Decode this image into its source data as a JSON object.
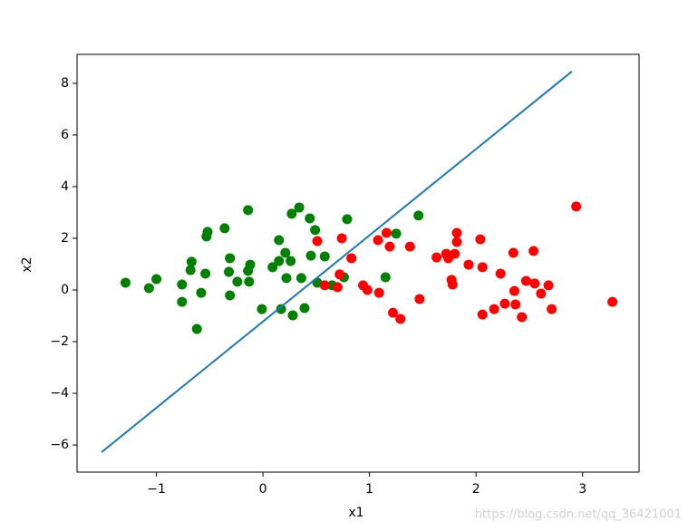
{
  "chart_data": {
    "type": "scatter",
    "xlabel": "x1",
    "ylabel": "x2",
    "xlim": [
      -1.745,
      3.53
    ],
    "ylim": [
      -7.05,
      9.12
    ],
    "xticks": [
      {
        "value": -1,
        "label": "−1"
      },
      0,
      1,
      2,
      3
    ],
    "yticks": [
      {
        "value": -6,
        "label": "−6"
      },
      {
        "value": -4,
        "label": "−4"
      },
      {
        "value": -2,
        "label": "−2"
      },
      0,
      2,
      4,
      6,
      8
    ],
    "series": [
      {
        "type": "scatter",
        "color": "#008000",
        "x": [
          -1.29,
          -1.07,
          -1.0,
          -0.76,
          -0.76,
          -0.67,
          -0.68,
          -0.62,
          -0.58,
          -0.54,
          -0.52,
          -0.53,
          -0.36,
          -0.31,
          -0.32,
          -0.31,
          -0.24,
          -0.14,
          -0.14,
          -0.12,
          -0.13,
          -0.01,
          0.09,
          0.15,
          0.15,
          0.17,
          0.21,
          0.22,
          0.26,
          0.27,
          0.28,
          0.34,
          0.36,
          0.39,
          0.44,
          0.45,
          0.49,
          0.51,
          0.58,
          0.65,
          0.76,
          0.79,
          1.15,
          1.25,
          1.46
        ],
        "values": [
          0.28,
          0.07,
          0.42,
          0.21,
          -0.46,
          1.09,
          0.77,
          -1.51,
          -0.11,
          0.63,
          2.25,
          2.07,
          2.39,
          1.23,
          0.7,
          -0.21,
          0.32,
          3.09,
          0.74,
          0.98,
          0.32,
          -0.74,
          0.88,
          1.93,
          1.12,
          -0.74,
          1.44,
          0.46,
          1.12,
          2.95,
          -0.98,
          3.19,
          0.46,
          -0.7,
          2.77,
          1.33,
          2.32,
          0.28,
          1.3,
          0.18,
          0.49,
          2.74,
          0.49,
          2.18,
          2.88
        ]
      },
      {
        "type": "scatter",
        "color": "#ff0000",
        "x": [
          0.51,
          0.58,
          0.7,
          0.74,
          0.72,
          0.83,
          0.94,
          0.98,
          1.08,
          1.09,
          1.16,
          1.19,
          1.22,
          1.29,
          1.38,
          1.47,
          1.63,
          1.72,
          1.74,
          1.77,
          1.78,
          1.8,
          1.82,
          1.82,
          1.93,
          2.04,
          2.06,
          2.06,
          2.17,
          2.23,
          2.27,
          2.35,
          2.36,
          2.37,
          2.43,
          2.47,
          2.55,
          2.54,
          2.61,
          2.68,
          2.71,
          2.94,
          3.28
        ],
        "values": [
          1.89,
          0.18,
          0.11,
          2.0,
          0.6,
          1.23,
          0.18,
          0.0,
          1.93,
          -0.11,
          2.21,
          1.68,
          -0.88,
          -1.12,
          1.68,
          -0.35,
          1.26,
          1.4,
          1.23,
          0.39,
          0.21,
          1.4,
          1.86,
          2.21,
          0.98,
          1.96,
          0.88,
          -0.95,
          -0.74,
          0.63,
          -0.53,
          1.44,
          -0.04,
          -0.56,
          -1.05,
          0.35,
          0.25,
          1.51,
          -0.14,
          0.18,
          -0.74,
          3.23,
          -0.46
        ]
      },
      {
        "type": "line",
        "color": "#1f77b4",
        "x": [
          -1.515,
          2.9
        ],
        "values": [
          -6.28,
          8.46
        ]
      }
    ],
    "watermark": "https://blog.csdn.net/qq_36421001"
  }
}
